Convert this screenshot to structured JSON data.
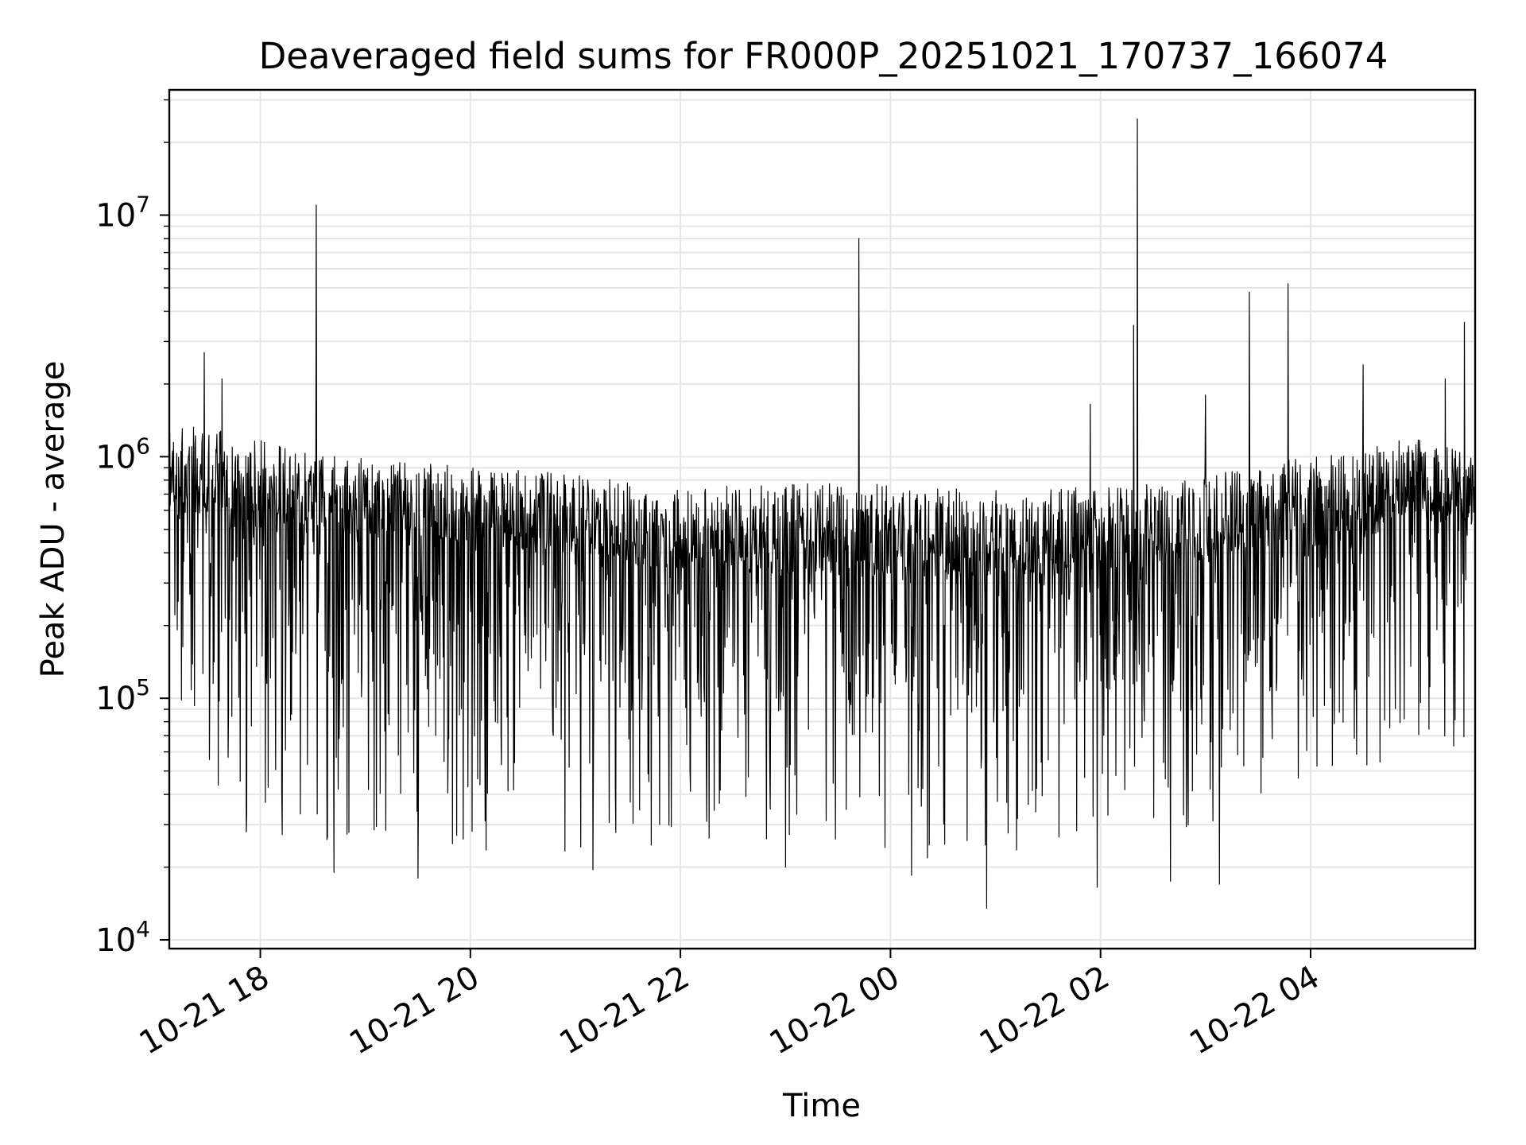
{
  "chart_data": {
    "type": "line",
    "title": "Deaveraged field sums for FR000P_20251021_170737_166074",
    "xlabel": "Time",
    "ylabel": "Peak ADU - average",
    "yscale": "log",
    "grid": true,
    "legend": "none",
    "line_color": "#000000",
    "grid_color": "#e6e6e6",
    "xlim": [
      "2025-10-21 17:08",
      "2025-10-22 05:34"
    ],
    "ylim": [
      9200,
      33000000
    ],
    "x_ticks": [
      {
        "value": "2025-10-21 18:00",
        "label": "10-21 18"
      },
      {
        "value": "2025-10-21 20:00",
        "label": "10-21 20"
      },
      {
        "value": "2025-10-21 22:00",
        "label": "10-21 22"
      },
      {
        "value": "2025-10-22 00:00",
        "label": "10-22 00"
      },
      {
        "value": "2025-10-22 02:00",
        "label": "10-22 02"
      },
      {
        "value": "2025-10-22 04:00",
        "label": "10-22 04"
      }
    ],
    "y_ticks": [
      {
        "value": 10000,
        "base": "10",
        "exp": "4"
      },
      {
        "value": 100000,
        "base": "10",
        "exp": "5"
      },
      {
        "value": 1000000,
        "base": "10",
        "exp": "6"
      },
      {
        "value": 10000000,
        "base": "10",
        "exp": "7"
      }
    ],
    "series_profile": {
      "x": [
        "2025-10-21 17:08",
        "2025-10-21 17:40",
        "2025-10-21 18:30",
        "2025-10-21 19:30",
        "2025-10-21 20:30",
        "2025-10-21 22:00",
        "2025-10-21 23:30",
        "2025-10-22 00:30",
        "2025-10-22 02:00",
        "2025-10-22 03:00",
        "2025-10-22 04:00",
        "2025-10-22 05:00",
        "2025-10-22 05:30"
      ],
      "median": [
        900000,
        800000,
        700000,
        650000,
        600000,
        500000,
        500000,
        480000,
        500000,
        550000,
        650000,
        800000,
        700000
      ],
      "upper": [
        1500000,
        1400000,
        1100000,
        1000000,
        950000,
        800000,
        850000,
        800000,
        800000,
        900000,
        1100000,
        1300000,
        1100000
      ],
      "lower": [
        50000,
        30000,
        25000,
        25000,
        22000,
        25000,
        25000,
        20000,
        25000,
        25000,
        40000,
        60000,
        60000
      ]
    },
    "spikes": [
      {
        "x": "2025-10-21 17:28",
        "y": 2700000
      },
      {
        "x": "2025-10-21 17:38",
        "y": 2100000
      },
      {
        "x": "2025-10-21 18:32",
        "y": 11000000
      },
      {
        "x": "2025-10-21 23:42",
        "y": 8000000
      },
      {
        "x": "2025-10-22 01:54",
        "y": 1650000
      },
      {
        "x": "2025-10-22 02:19",
        "y": 3500000
      },
      {
        "x": "2025-10-22 02:21",
        "y": 25000000
      },
      {
        "x": "2025-10-22 03:00",
        "y": 1800000
      },
      {
        "x": "2025-10-22 03:25",
        "y": 4800000
      },
      {
        "x": "2025-10-22 03:47",
        "y": 5200000
      },
      {
        "x": "2025-10-22 04:30",
        "y": 2400000
      },
      {
        "x": "2025-10-22 05:17",
        "y": 2100000
      },
      {
        "x": "2025-10-22 05:28",
        "y": 3600000
      }
    ],
    "dips": [
      {
        "x": "2025-10-21 17:52",
        "y": 28000
      },
      {
        "x": "2025-10-21 18:38",
        "y": 26000
      },
      {
        "x": "2025-10-21 18:42",
        "y": 19000
      },
      {
        "x": "2025-10-21 19:30",
        "y": 18000
      },
      {
        "x": "2025-10-21 21:10",
        "y": 19500
      },
      {
        "x": "2025-10-21 23:00",
        "y": 20000
      },
      {
        "x": "2025-10-22 00:12",
        "y": 18500
      },
      {
        "x": "2025-10-22 00:55",
        "y": 13500
      },
      {
        "x": "2025-10-22 01:58",
        "y": 16500
      },
      {
        "x": "2025-10-22 02:40",
        "y": 17500
      },
      {
        "x": "2025-10-22 03:08",
        "y": 17000
      },
      {
        "x": "2025-10-22 05:34",
        "y": 56000
      }
    ]
  }
}
